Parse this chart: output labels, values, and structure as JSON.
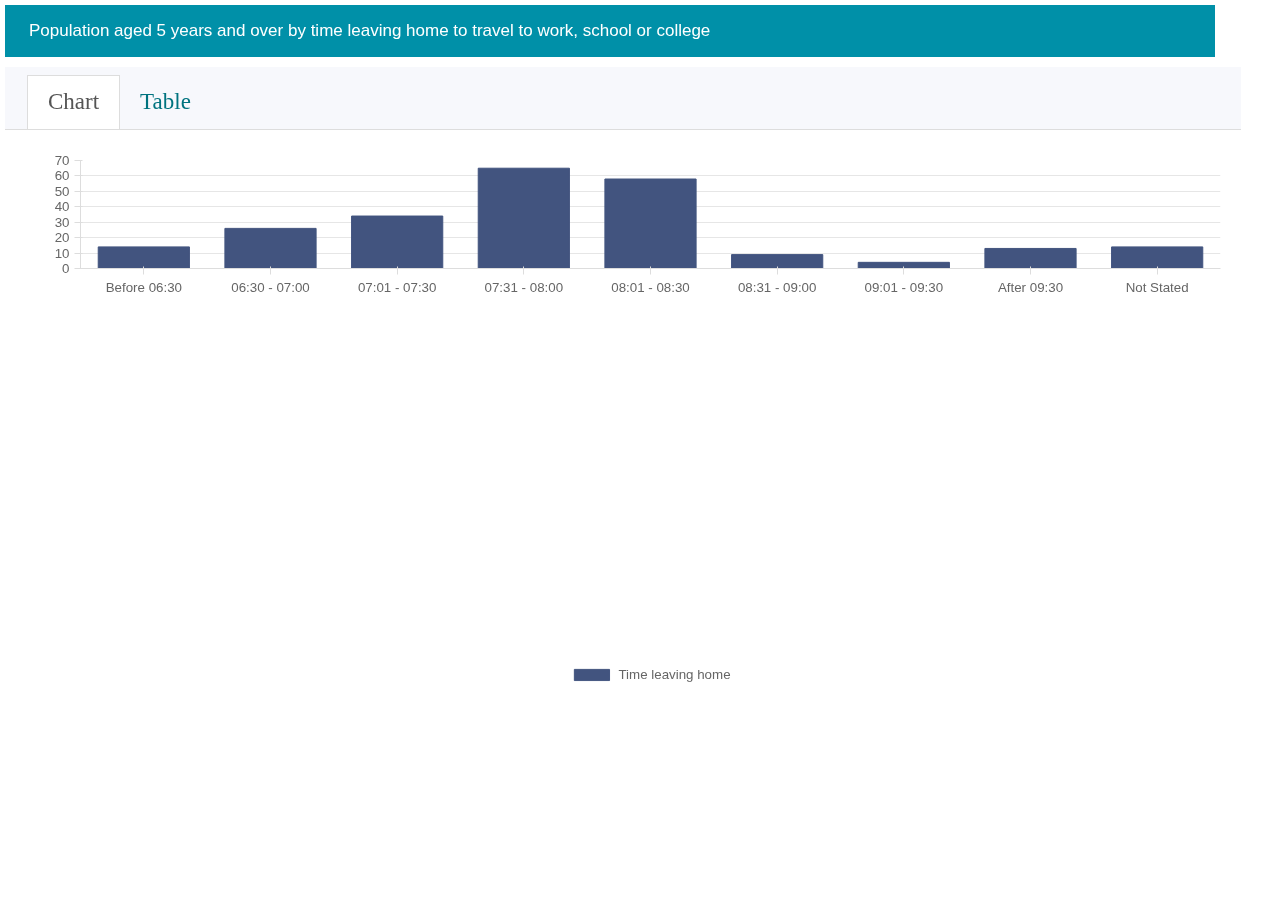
{
  "chart_data": {
    "type": "bar",
    "title": "Population aged 5 years and over by time leaving home to travel to work, school or college",
    "annotations": [
      "Chart",
      "Table"
    ],
    "categories": [
      "Before 06:30",
      "06:30 - 07:00",
      "07:01 - 07:30",
      "07:31 - 08:00",
      "08:01 - 08:30",
      "08:31 - 09:00",
      "09:01 - 09:30",
      "After 09:30",
      "Not Stated"
    ],
    "series": [
      {
        "name": "Time leaving home",
        "color": "#42547f",
        "values": [
          14,
          26,
          34,
          65,
          58,
          9,
          4,
          13,
          14
        ]
      }
    ],
    "ylim": [
      0,
      70
    ],
    "yticks": [
      0,
      10,
      20,
      30,
      40,
      50,
      60,
      70
    ],
    "grid": "y",
    "legend": "bottom"
  }
}
